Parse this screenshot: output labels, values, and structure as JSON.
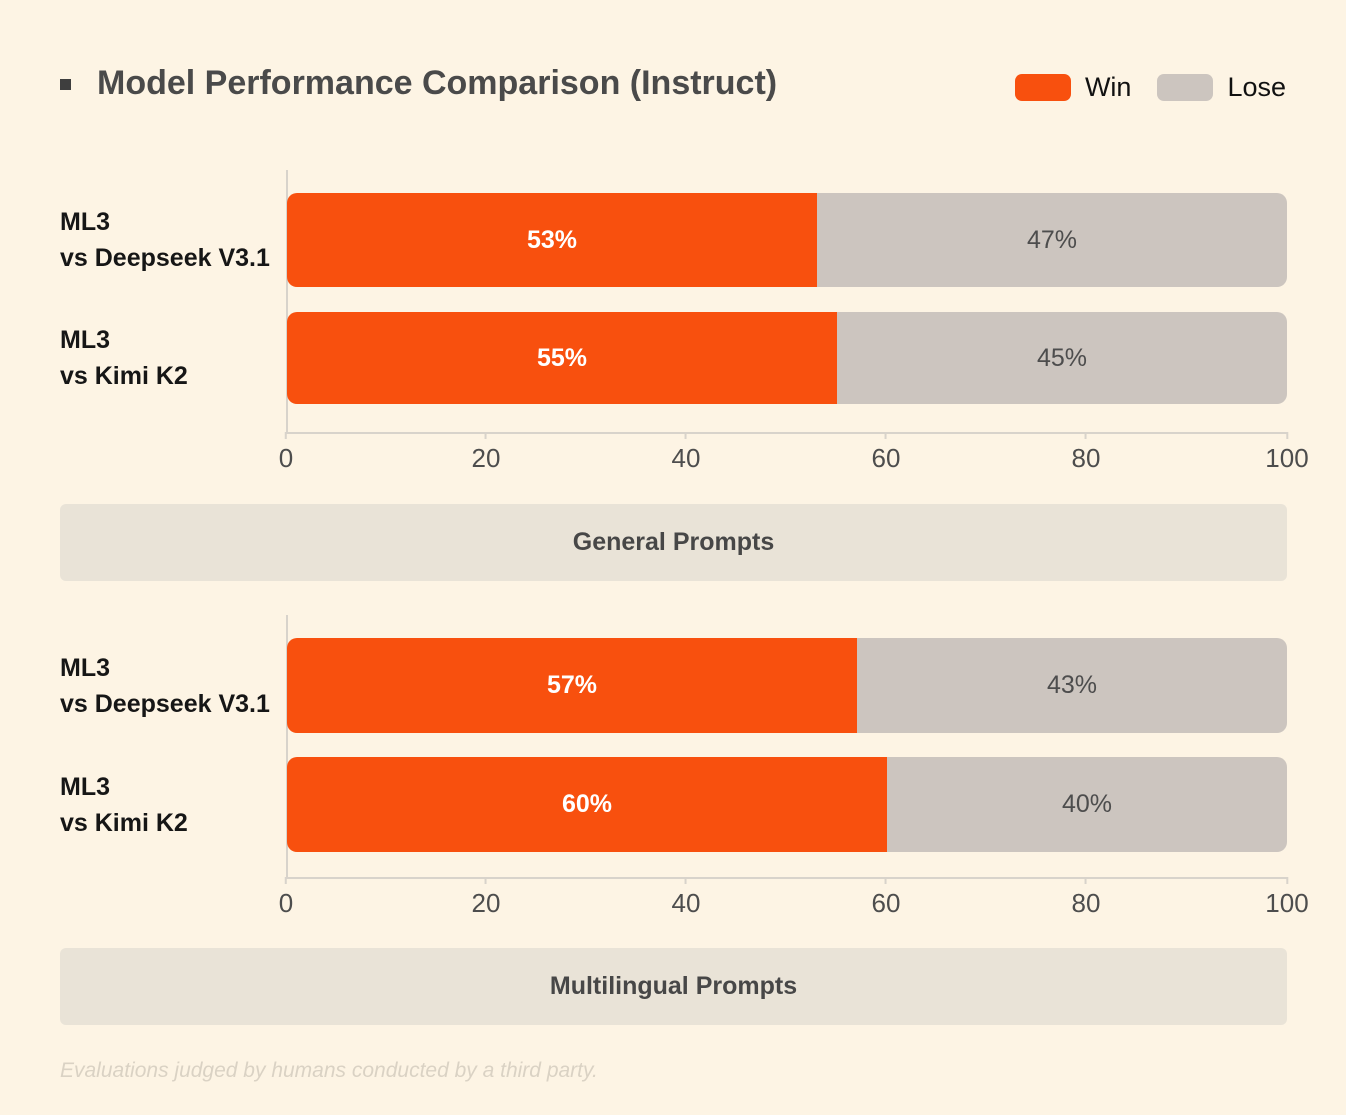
{
  "page": {
    "title": "Model Performance Comparison (Instruct)",
    "footer_note": "Evaluations judged by humans conducted by a third party.",
    "background_color": "#FDF4E4"
  },
  "legend": {
    "position": "top-right",
    "items": [
      {
        "label": "Win",
        "color": "#F8500E"
      },
      {
        "label": "Lose",
        "color": "#CCC5BF"
      }
    ]
  },
  "chart_data": [
    {
      "type": "bar",
      "orientation": "horizontal_stacked",
      "section_label": "General Prompts",
      "categories": [
        "ML3\nvs Deepseek V3.1",
        "ML3\nvs Kimi K2"
      ],
      "series": [
        {
          "name": "Win",
          "color": "#F8500E",
          "values": [
            53,
            55
          ]
        },
        {
          "name": "Lose",
          "color": "#CCC5BF",
          "values": [
            47,
            45
          ]
        }
      ],
      "bar_labels": [
        [
          "53%",
          "47%"
        ],
        [
          "55%",
          "45%"
        ]
      ],
      "xlim": [
        0,
        100
      ],
      "xticks": [
        "0",
        "20",
        "40",
        "60",
        "80",
        "100"
      ],
      "grid": false,
      "legend_position": "top-right"
    },
    {
      "type": "bar",
      "orientation": "horizontal_stacked",
      "section_label": "Multilingual Prompts",
      "categories": [
        "ML3\nvs Deepseek V3.1",
        "ML3\nvs Kimi K2"
      ],
      "series": [
        {
          "name": "Win",
          "color": "#F8500E",
          "values": [
            57,
            60
          ]
        },
        {
          "name": "Lose",
          "color": "#CCC5BF",
          "values": [
            43,
            40
          ]
        }
      ],
      "bar_labels": [
        [
          "57%",
          "43%"
        ],
        [
          "60%",
          "40%"
        ]
      ],
      "xlim": [
        0,
        100
      ],
      "xticks": [
        "0",
        "20",
        "40",
        "60",
        "80",
        "100"
      ],
      "grid": false,
      "legend_position": "top-right"
    }
  ]
}
